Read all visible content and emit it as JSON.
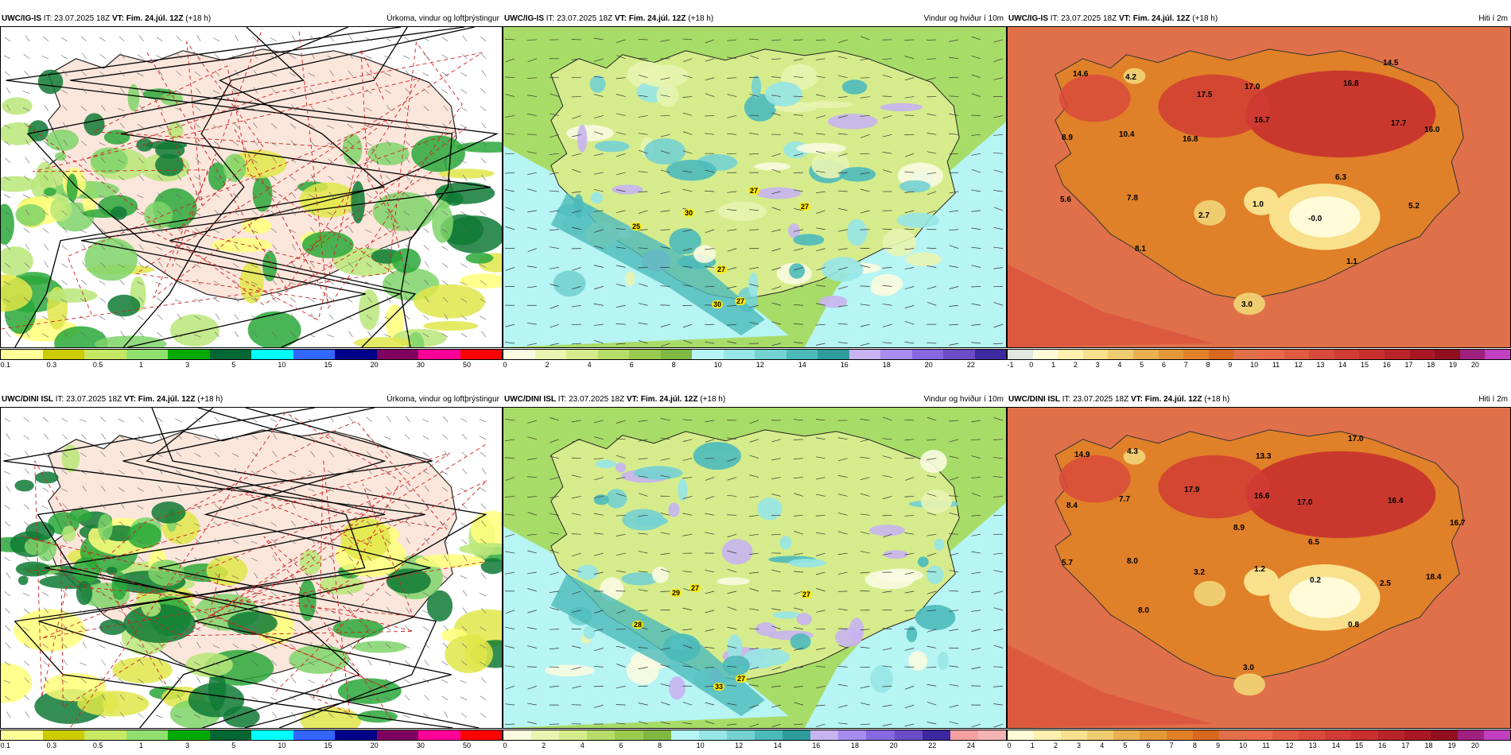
{
  "rows": [
    {
      "model_label": "UWC/IG-IS",
      "it_label": "IT:",
      "it_value": "23.07.2025 18Z",
      "vt_label": "VT:",
      "vt_value": "Fim. 24.júl. 12Z",
      "lead": "(+18 h)",
      "precip_title": "Úrkoma, vindur og loftþrýstingur",
      "wind_title": "Vindur og hviður í 10m",
      "temp_title": "Hiti í 2m",
      "gust_labels": [
        "25",
        "30",
        "27",
        "27",
        "27",
        "30",
        "27"
      ],
      "temp_labels": [
        "14.6",
        "4.2",
        "17.5",
        "17.0",
        "16.8",
        "14.5",
        "8.9",
        "10.4",
        "16.8",
        "16.7",
        "17.7",
        "16.0",
        "6.3",
        "5.6",
        "7.8",
        "2.7",
        "1.0",
        "-0.0",
        "5.2",
        "8.1",
        "1.1",
        "3.0"
      ]
    },
    {
      "model_label": "UWC/DINI ISL",
      "it_label": "IT:",
      "it_value": "23.07.2025 18Z",
      "vt_label": "VT:",
      "vt_value": "Fim. 24.júl. 12Z",
      "lead": "(+18 h)",
      "precip_title": "Úrkoma, vindur og loftþrýstingur",
      "wind_title": "Vindur og hviður í 10m",
      "temp_title": "Hiti í 2m",
      "gust_labels": [
        "28",
        "29",
        "27",
        "27",
        "33",
        "27"
      ],
      "temp_labels": [
        "14.9",
        "4.3",
        "13.3",
        "17.0",
        "8.4",
        "7.7",
        "17.9",
        "16.6",
        "17.0",
        "16.4",
        "16.7",
        "8.9",
        "6.5",
        "5.7",
        "8.0",
        "3.2",
        "1.2",
        "0.2",
        "2.5",
        "18.4",
        "8.0",
        "0.8",
        "3.0"
      ]
    }
  ],
  "precip_colorbar": {
    "colors": [
      "#ffff99",
      "#cccc00",
      "#c8e864",
      "#90e070",
      "#00aa00",
      "#006633",
      "#00ffff",
      "#3366ff",
      "#000088",
      "#800060",
      "#ff0099",
      "#ff0000"
    ],
    "ticks": [
      "0.1",
      "0.3",
      "0.5",
      "1",
      "3",
      "5",
      "10",
      "15",
      "20",
      "30",
      "50"
    ]
  },
  "wind_colorbar_top": {
    "colors": [
      "#f8fbe0",
      "#e8f4b0",
      "#d6ec8c",
      "#b8dc6a",
      "#9acb4e",
      "#7fb843",
      "#b7f4f4",
      "#96e6e6",
      "#74d2d2",
      "#4cbaba",
      "#2e9c9c",
      "#c8b4f0",
      "#a88cf0",
      "#8868e0",
      "#6a4cc8",
      "#3c28a0"
    ],
    "ticks": [
      "0",
      "2",
      "4",
      "6",
      "8",
      "10",
      "12",
      "14",
      "16",
      "18",
      "20",
      "22"
    ]
  },
  "wind_colorbar_bottom": {
    "colors": [
      "#f8fbe0",
      "#e8f4b0",
      "#d6ec8c",
      "#b8dc6a",
      "#9acb4e",
      "#7fb843",
      "#b7f4f4",
      "#96e6e6",
      "#74d2d2",
      "#4cbaba",
      "#2e9c9c",
      "#c8b4f0",
      "#a88cf0",
      "#8868e0",
      "#6a4cc8",
      "#3c28a0",
      "#f4a0a0",
      "#f4b4b4"
    ],
    "ticks": [
      "0",
      "2",
      "4",
      "6",
      "8",
      "10",
      "12",
      "14",
      "16",
      "18",
      "20",
      "22",
      "24"
    ]
  },
  "temp_colorbar_top": {
    "colors": [
      "#e0e8e0",
      "#fffbd8",
      "#fff0b0",
      "#f8e08c",
      "#f0cc70",
      "#eab050",
      "#e49838",
      "#e08028",
      "#d86820",
      "#e0704a",
      "#e86a4a",
      "#e05a40",
      "#d84a3a",
      "#d03c34",
      "#c8302e",
      "#b82428",
      "#a81824",
      "#901020",
      "#a02080",
      "#c040c0"
    ],
    "ticks": [
      "-1",
      "0",
      "1",
      "2",
      "3",
      "4",
      "5",
      "6",
      "7",
      "8",
      "9",
      "10",
      "11",
      "12",
      "13",
      "14",
      "15",
      "16",
      "17",
      "18",
      "19",
      "20"
    ]
  },
  "temp_colorbar_bottom": {
    "colors": [
      "#fffbd8",
      "#fff0b0",
      "#f8e08c",
      "#f0cc70",
      "#eab050",
      "#e49838",
      "#e08028",
      "#d86820",
      "#e0704a",
      "#e86a4a",
      "#e05a40",
      "#d84a3a",
      "#d03c34",
      "#c8302e",
      "#b82428",
      "#a81824",
      "#901020",
      "#a02080",
      "#c040c0"
    ],
    "ticks": [
      "0",
      "1",
      "2",
      "3",
      "4",
      "5",
      "6",
      "7",
      "8",
      "9",
      "10",
      "11",
      "12",
      "13",
      "14",
      "15",
      "16",
      "17",
      "18",
      "19",
      "20"
    ]
  }
}
